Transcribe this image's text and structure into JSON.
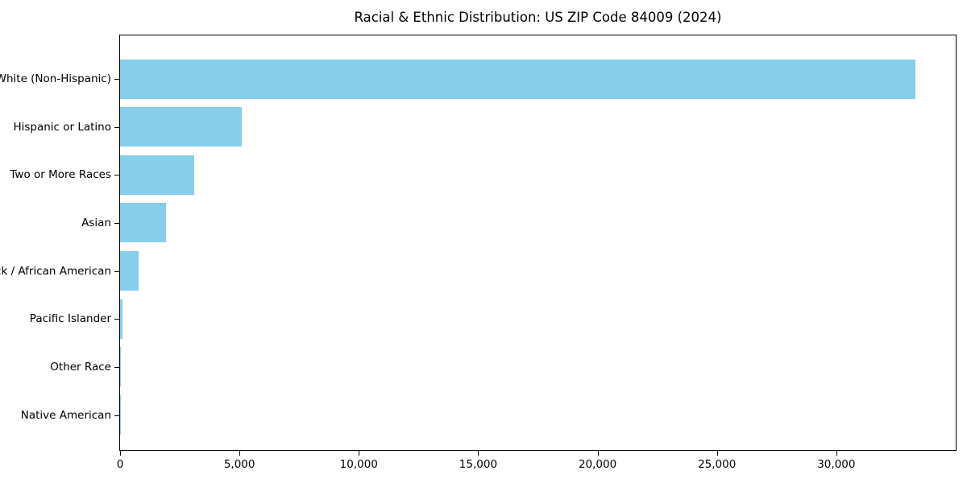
{
  "chart_data": {
    "type": "bar",
    "orientation": "horizontal",
    "title": "Racial & Ethnic Distribution: US ZIP Code 84009 (2024)",
    "categories": [
      "White (Non-Hispanic)",
      "Hispanic or Latino",
      "Two or More Races",
      "Asian",
      "Black / African American",
      "Pacific Islander",
      "Other Race",
      "Native American"
    ],
    "values": [
      33300,
      5100,
      3100,
      1920,
      780,
      100,
      45,
      15
    ],
    "xlabel": "",
    "ylabel": "",
    "xlim": [
      0,
      35000
    ],
    "x_ticks": [
      0,
      5000,
      10000,
      15000,
      20000,
      25000,
      30000
    ],
    "x_tick_labels": [
      "0",
      "5,000",
      "10,000",
      "15,000",
      "20,000",
      "25,000",
      "30,000"
    ],
    "bar_color": "#87CEEB",
    "axis_color": "#000000",
    "background": "#FFFFFF",
    "grid": false,
    "legend": false
  }
}
